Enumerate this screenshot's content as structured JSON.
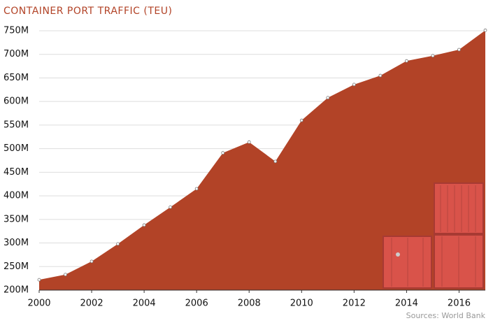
{
  "chart_data": {
    "type": "area",
    "title": "CONTAINER PORT TRAFFIC (TEU)",
    "source": "Sources: World Bank",
    "x": [
      2000,
      2001,
      2002,
      2003,
      2004,
      2005,
      2006,
      2007,
      2008,
      2009,
      2010,
      2011,
      2012,
      2013,
      2014,
      2015,
      2016,
      2017
    ],
    "values": [
      222000000,
      233000000,
      261000000,
      298000000,
      338000000,
      376000000,
      415000000,
      491000000,
      514000000,
      473000000,
      560000000,
      608000000,
      636000000,
      655000000,
      686000000,
      697000000,
      710000000,
      751000000
    ],
    "color": "#b24327",
    "xlim": [
      2000,
      2017
    ],
    "xticks": [
      2000,
      2002,
      2004,
      2006,
      2008,
      2010,
      2012,
      2014,
      2016
    ],
    "ylim": [
      200000000,
      750000000
    ],
    "yticks": [
      {
        "value": 200000000,
        "label": "200M"
      },
      {
        "value": 250000000,
        "label": "250M"
      },
      {
        "value": 300000000,
        "label": "300M"
      },
      {
        "value": 350000000,
        "label": "350M"
      },
      {
        "value": 400000000,
        "label": "400M"
      },
      {
        "value": 450000000,
        "label": "450M"
      },
      {
        "value": 500000000,
        "label": "500M"
      },
      {
        "value": 550000000,
        "label": "550M"
      },
      {
        "value": 600000000,
        "label": "600M"
      },
      {
        "value": 650000000,
        "label": "650M"
      },
      {
        "value": 700000000,
        "label": "700M"
      },
      {
        "value": 750000000,
        "label": "750M"
      }
    ],
    "grid": true
  }
}
